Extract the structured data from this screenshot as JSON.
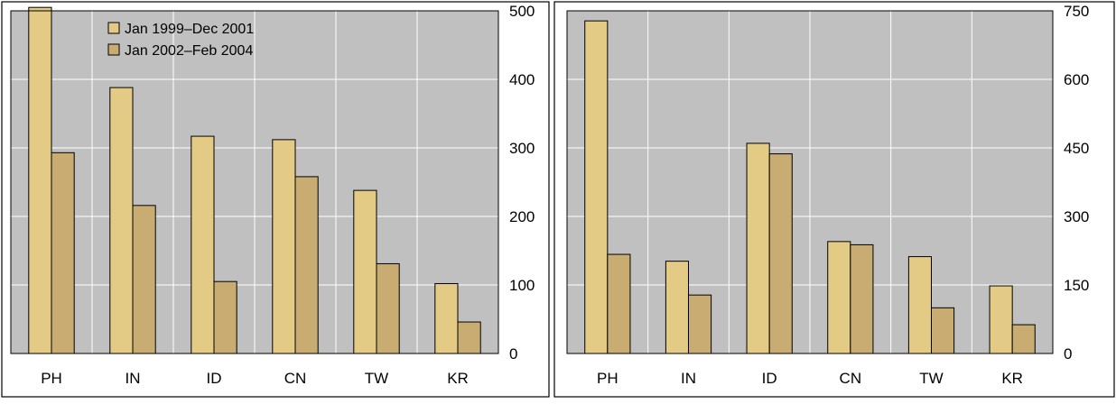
{
  "colors": {
    "plot_bg": "#c0c0c0",
    "grid": "#ffffff",
    "series_1": "#e3cb85",
    "series_2": "#c8ac72",
    "outline": "#000000"
  },
  "chart_data": [
    {
      "type": "bar",
      "title": "",
      "xlabel": "",
      "ylabel": "",
      "categories": [
        "PH",
        "IN",
        "ID",
        "CN",
        "TW",
        "KR"
      ],
      "ylim": [
        0,
        500
      ],
      "yticks": [
        0,
        100,
        200,
        300,
        400,
        500
      ],
      "y_axis_side": "right",
      "grid": true,
      "legend_position": "top-left",
      "series": [
        {
          "name": "Jan 1999–Dec 2001",
          "values": [
            505,
            388,
            317,
            312,
            238,
            102
          ]
        },
        {
          "name": "Jan 2002–Feb 2004",
          "values": [
            293,
            216,
            105,
            258,
            131,
            46
          ]
        }
      ]
    },
    {
      "type": "bar",
      "title": "",
      "xlabel": "",
      "ylabel": "",
      "categories": [
        "PH",
        "IN",
        "ID",
        "CN",
        "TW",
        "KR"
      ],
      "ylim": [
        0,
        750
      ],
      "yticks": [
        0,
        150,
        300,
        450,
        600,
        750
      ],
      "y_axis_side": "right",
      "grid": true,
      "series": [
        {
          "values": [
            728,
            202,
            460,
            245,
            212,
            148
          ]
        },
        {
          "values": [
            217,
            128,
            437,
            238,
            100,
            63
          ]
        }
      ]
    }
  ]
}
